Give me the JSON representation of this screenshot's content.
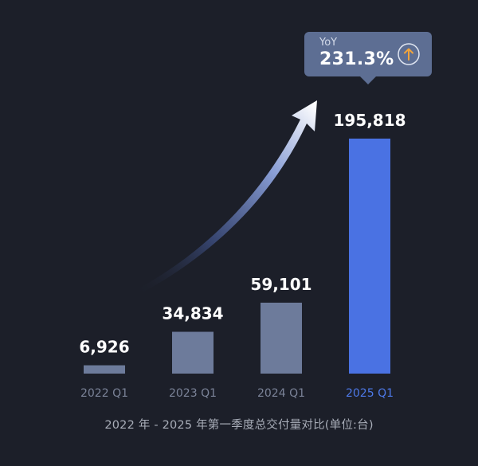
{
  "chart_data": {
    "type": "bar",
    "categories": [
      "2022 Q1",
      "2023 Q1",
      "2024 Q1",
      "2025 Q1"
    ],
    "values": [
      6926,
      34834,
      59101,
      195818
    ],
    "value_labels": [
      "6,926",
      "34,834",
      "59,101",
      "195,818"
    ],
    "title": "2022 年 - 2025 年第一季度总交付量对比(单位:台)",
    "xlabel": "",
    "ylabel": "",
    "ylim": [
      0,
      200000
    ],
    "grid": false,
    "legend": "none",
    "highlight_index": 3,
    "annotation": {
      "label": "YoY",
      "value": "231.3%",
      "icon": "arrow-up-icon"
    }
  },
  "colors": {
    "background": "#1c1f29",
    "bar": "#6d7b9b",
    "bar_highlight": "#4a72e3",
    "value_label": "#ffffff",
    "tick_label": "#7b8398",
    "tick_label_highlight": "#4d79e8",
    "caption": "#a8adb8",
    "tooltip_bg": "#5d6e93",
    "up_arrow": "#f2a43a"
  }
}
